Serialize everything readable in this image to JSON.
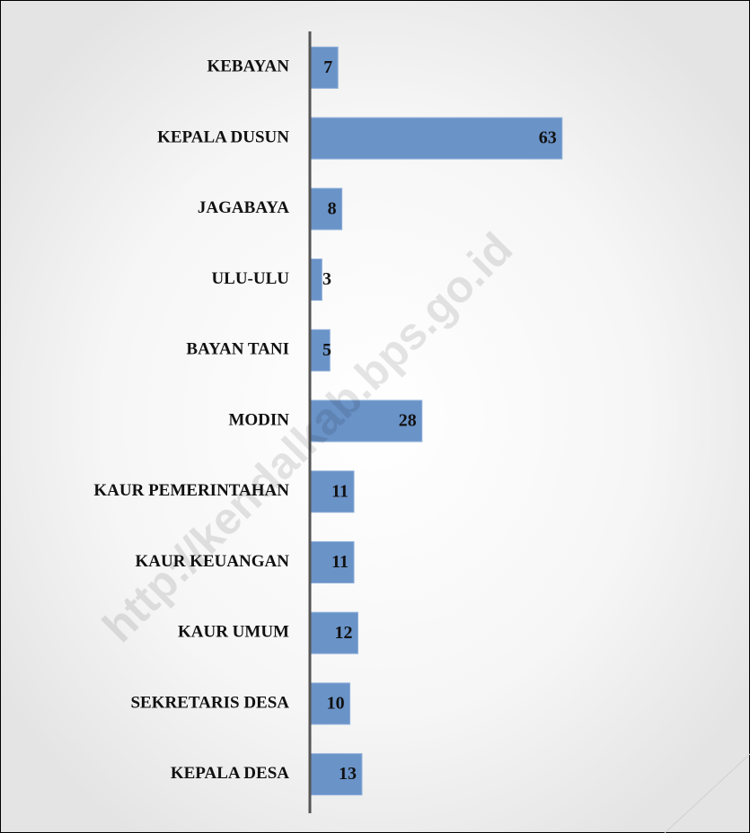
{
  "chart_data": {
    "type": "bar",
    "orientation": "horizontal",
    "categories": [
      "KEBAYAN",
      "KEPALA DUSUN",
      "JAGABAYA",
      "ULU-ULU",
      "BAYAN TANI",
      "MODIN",
      "KAUR PEMERINTAHAN",
      "KAUR KEUANGAN",
      "KAUR UMUM",
      "SEKRETARIS DESA",
      "KEPALA DESA"
    ],
    "values": [
      7,
      63,
      8,
      3,
      5,
      28,
      11,
      11,
      12,
      10,
      13
    ],
    "color": "#6a93c8",
    "xlim": [
      0,
      105
    ],
    "watermark": "http://kendalkab.bps.go.id"
  }
}
